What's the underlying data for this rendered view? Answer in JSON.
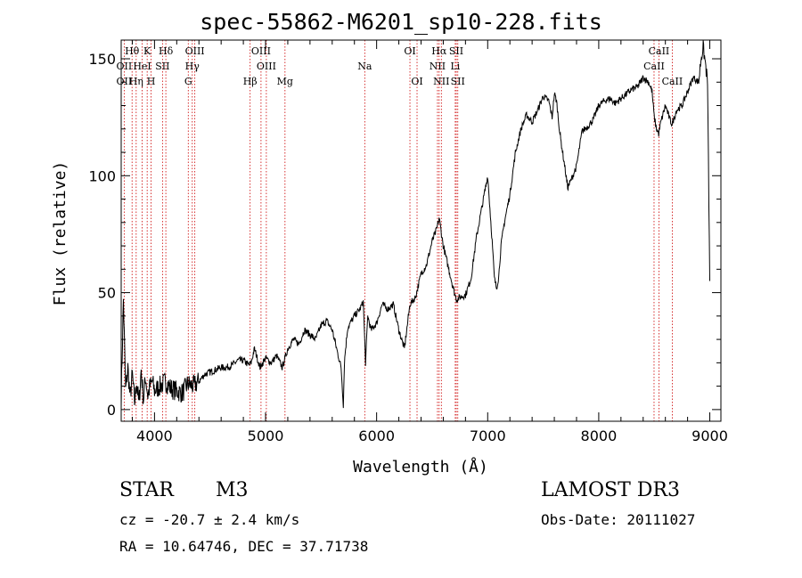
{
  "chart_data": {
    "type": "line",
    "title": "spec-55862-M6201_sp10-228.fits",
    "xlabel": "Wavelength (Å)",
    "ylabel": "Flux (relative)",
    "xlim": [
      3700,
      9100
    ],
    "ylim": [
      -5,
      158
    ],
    "xticks": [
      "4000",
      "5000",
      "6000",
      "7000",
      "8000",
      "9000"
    ],
    "yticks": [
      "0",
      "50",
      "100",
      "150"
    ],
    "series": [
      {
        "name": "flux",
        "x": [
          3700,
          3720,
          3740,
          3760,
          3780,
          3800,
          3820,
          3840,
          3860,
          3880,
          3900,
          3920,
          3940,
          3960,
          3980,
          4000,
          4050,
          4100,
          4150,
          4200,
          4250,
          4300,
          4350,
          4400,
          4450,
          4500,
          4550,
          4600,
          4650,
          4700,
          4750,
          4800,
          4850,
          4870,
          4900,
          4950,
          5000,
          5050,
          5100,
          5150,
          5200,
          5250,
          5300,
          5350,
          5400,
          5450,
          5500,
          5550,
          5600,
          5650,
          5680,
          5700,
          5710,
          5720,
          5740,
          5800,
          5850,
          5880,
          5900,
          5920,
          5950,
          6000,
          6050,
          6100,
          6150,
          6200,
          6250,
          6300,
          6350,
          6400,
          6450,
          6500,
          6540,
          6563,
          6600,
          6650,
          6700,
          6720,
          6750,
          6800,
          6850,
          6900,
          6950,
          7000,
          7040,
          7060,
          7080,
          7100,
          7120,
          7150,
          7200,
          7250,
          7300,
          7350,
          7400,
          7450,
          7500,
          7550,
          7580,
          7600,
          7620,
          7650,
          7700,
          7720,
          7750,
          7800,
          7850,
          7900,
          7950,
          8000,
          8050,
          8100,
          8150,
          8200,
          8250,
          8300,
          8350,
          8400,
          8450,
          8480,
          8500,
          8520,
          8540,
          8560,
          8600,
          8640,
          8660,
          8700,
          8750,
          8800,
          8850,
          8900,
          8920,
          8940,
          8960,
          8980,
          9000
        ],
        "values": [
          5,
          47,
          8,
          18,
          5,
          15,
          3,
          12,
          2,
          17,
          4,
          14,
          6,
          10,
          12,
          8,
          10,
          12,
          9,
          8,
          7,
          11,
          10,
          12,
          15,
          16,
          17,
          18,
          18,
          19,
          21,
          21,
          19,
          20,
          26,
          18,
          22,
          20,
          23,
          18,
          26,
          30,
          28,
          34,
          32,
          30,
          36,
          38,
          34,
          24,
          18,
          2,
          20,
          26,
          35,
          40,
          43,
          46,
          20,
          40,
          34,
          37,
          45,
          43,
          45,
          34,
          26,
          45,
          48,
          58,
          62,
          72,
          77,
          82,
          70,
          60,
          50,
          47,
          48,
          49,
          56,
          74,
          87,
          100,
          72,
          56,
          52,
          57,
          70,
          80,
          92,
          110,
          120,
          126,
          123,
          128,
          134,
          132,
          125,
          135,
          132,
          118,
          102,
          95,
          98,
          104,
          119,
          121,
          124,
          130,
          132,
          133,
          131,
          133,
          135,
          137,
          138,
          142,
          140,
          136,
          125,
          120,
          118,
          123,
          130,
          124,
          122,
          128,
          130,
          136,
          142,
          140,
          150,
          155,
          148,
          140,
          55
        ]
      }
    ],
    "line_labels": [
      {
        "label": "Hθ",
        "wave": 3798,
        "row": 0
      },
      {
        "label": "OII",
        "wave": 3727,
        "row": 1
      },
      {
        "label": "OII",
        "wave": 3727,
        "row": 2
      },
      {
        "label": "K",
        "wave": 3934,
        "row": 0
      },
      {
        "label": "HeI",
        "wave": 3889,
        "row": 1
      },
      {
        "label": "Hη",
        "wave": 3835,
        "row": 2
      },
      {
        "label": "SII",
        "wave": 4072,
        "row": 1
      },
      {
        "label": "H",
        "wave": 3969,
        "row": 2
      },
      {
        "label": "Hδ",
        "wave": 4102,
        "row": 0
      },
      {
        "label": "OIII",
        "wave": 4363,
        "row": 0
      },
      {
        "label": "Hγ",
        "wave": 4340,
        "row": 1
      },
      {
        "label": "G",
        "wave": 4304,
        "row": 2
      },
      {
        "label": "OIII",
        "wave": 4959,
        "row": 0
      },
      {
        "label": "OIII",
        "wave": 5007,
        "row": 1
      },
      {
        "label": "Hβ",
        "wave": 4861,
        "row": 2
      },
      {
        "label": "Mg",
        "wave": 5175,
        "row": 2
      },
      {
        "label": "Na",
        "wave": 5893,
        "row": 1
      },
      {
        "label": "OI",
        "wave": 6300,
        "row": 0
      },
      {
        "label": "OI",
        "wave": 6364,
        "row": 2
      },
      {
        "label": "Hα",
        "wave": 6563,
        "row": 0
      },
      {
        "label": "NII",
        "wave": 6548,
        "row": 1
      },
      {
        "label": "NII",
        "wave": 6583,
        "row": 2
      },
      {
        "label": "SII",
        "wave": 6717,
        "row": 0
      },
      {
        "label": "Li",
        "wave": 6708,
        "row": 1
      },
      {
        "label": "SII",
        "wave": 6731,
        "row": 2
      },
      {
        "label": "CaII",
        "wave": 8542,
        "row": 0
      },
      {
        "label": "CaII",
        "wave": 8498,
        "row": 1
      },
      {
        "label": "CaII",
        "wave": 8662,
        "row": 2
      }
    ],
    "line_waves": [
      3727,
      3798,
      3835,
      3889,
      3934,
      3969,
      4072,
      4102,
      4304,
      4340,
      4363,
      4861,
      4959,
      5007,
      5175,
      5893,
      6300,
      6364,
      6548,
      6563,
      6583,
      6708,
      6717,
      6731,
      8498,
      8542,
      8662
    ]
  },
  "info": {
    "class_label": "STAR",
    "subclass": "M3",
    "survey": "LAMOST DR3",
    "cz": "cz = -20.7 ± 2.4 km/s",
    "obs_date": "Obs-Date: 20111027",
    "coords": "RA =  10.64746, DEC =  37.71738"
  },
  "colors": {
    "line": "#000000",
    "marker": "#cc0000"
  }
}
